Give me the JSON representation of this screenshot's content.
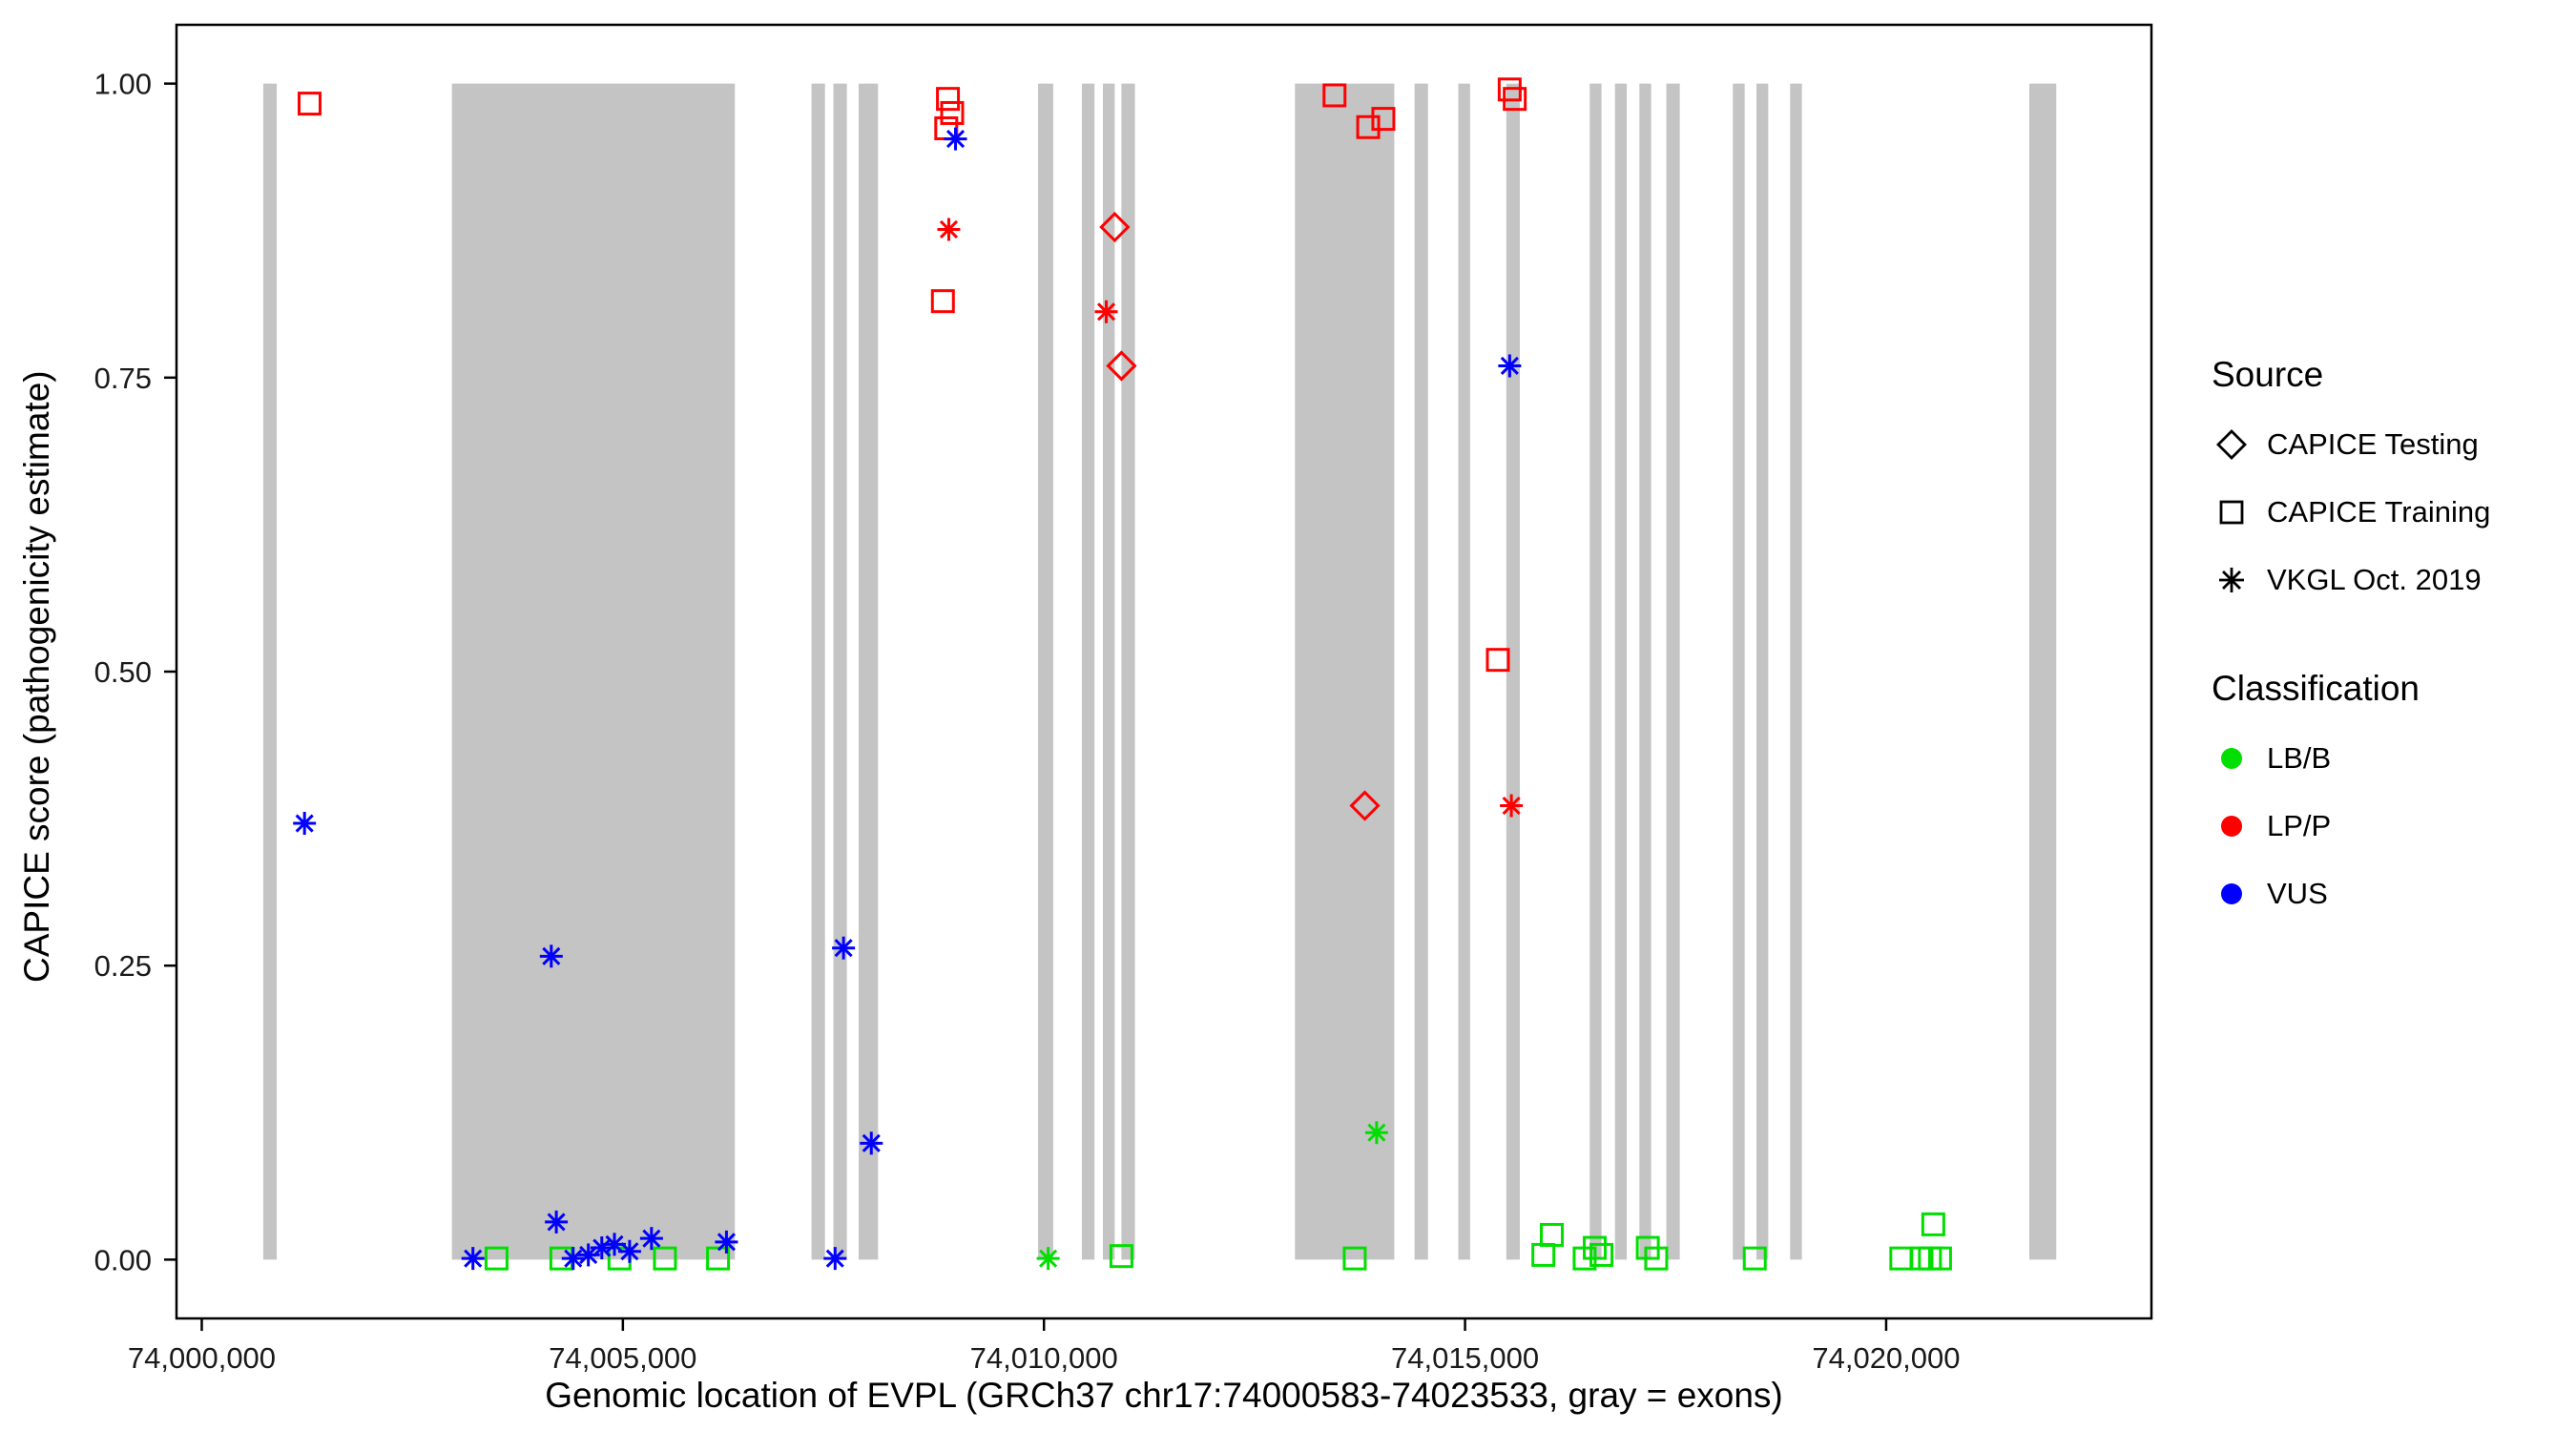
{
  "figure": {
    "background": "#FFFFFF"
  },
  "chart_data": {
    "type": "scatter",
    "title": "",
    "xlabel": "Genomic location of EVPL (GRCh37 chr17:74000583-74023533, gray = exons)",
    "ylabel": "CAPICE score (pathogenicity estimate)",
    "xlim": [
      73999700,
      74023150
    ],
    "ylim": [
      -0.05,
      1.05
    ],
    "grid": false,
    "legend_position": "right",
    "panel_border_color": "#000000",
    "tick_label_color": "#1a1a1a",
    "exon_color": "#C4C4C4",
    "x_ticks": [
      {
        "value": 74000000,
        "label": "74,000,000"
      },
      {
        "value": 74005000,
        "label": "74,005,000"
      },
      {
        "value": 74010000,
        "label": "74,010,000"
      },
      {
        "value": 74015000,
        "label": "74,015,000"
      },
      {
        "value": 74020000,
        "label": "74,020,000"
      }
    ],
    "y_ticks": [
      {
        "value": 0.0,
        "label": "0.00"
      },
      {
        "value": 0.25,
        "label": "0.25"
      },
      {
        "value": 0.5,
        "label": "0.50"
      },
      {
        "value": 0.75,
        "label": "0.75"
      },
      {
        "value": 1.0,
        "label": "1.00"
      }
    ],
    "exons": [
      [
        74000730,
        74000890
      ],
      [
        74002970,
        74006330
      ],
      [
        74007240,
        74007400
      ],
      [
        74007500,
        74007660
      ],
      [
        74007800,
        74008030
      ],
      [
        74009930,
        74010110
      ],
      [
        74010450,
        74010600
      ],
      [
        74010700,
        74010840
      ],
      [
        74010920,
        74011080
      ],
      [
        74012980,
        74014160
      ],
      [
        74014400,
        74014560
      ],
      [
        74014920,
        74015060
      ],
      [
        74015490,
        74015650
      ],
      [
        74016480,
        74016620
      ],
      [
        74016780,
        74016920
      ],
      [
        74017070,
        74017210
      ],
      [
        74017390,
        74017550
      ],
      [
        74018180,
        74018320
      ],
      [
        74018460,
        74018600
      ],
      [
        74018860,
        74019000
      ],
      [
        74021700,
        74022020
      ]
    ],
    "series": [
      {
        "name": "CAPICE Training",
        "classification": "LP/P",
        "shape": "square",
        "color": "#FF0000",
        "points": [
          [
            74001280,
            0.983
          ],
          [
            74008860,
            0.987
          ],
          [
            74008910,
            0.975
          ],
          [
            74008840,
            0.962
          ],
          [
            74008800,
            0.815
          ],
          [
            74013450,
            0.99
          ],
          [
            74013850,
            0.963
          ],
          [
            74014030,
            0.97
          ],
          [
            74015530,
            0.995
          ],
          [
            74015590,
            0.987
          ],
          [
            74015390,
            0.51
          ]
        ]
      },
      {
        "name": "CAPICE Training",
        "classification": "LB/B",
        "shape": "square",
        "color": "#00DF00",
        "points": [
          [
            74003500,
            0.001
          ],
          [
            74004270,
            0.001
          ],
          [
            74004960,
            0.001
          ],
          [
            74005500,
            0.001
          ],
          [
            74006130,
            0.001
          ],
          [
            74010920,
            0.003
          ],
          [
            74013690,
            0.001
          ],
          [
            74015930,
            0.004
          ],
          [
            74016030,
            0.021
          ],
          [
            74016420,
            0.001
          ],
          [
            74016540,
            0.01
          ],
          [
            74016620,
            0.004
          ],
          [
            74017170,
            0.01
          ],
          [
            74017270,
            0.001
          ],
          [
            74018440,
            0.001
          ],
          [
            74020180,
            0.001
          ],
          [
            74020420,
            0.001
          ],
          [
            74020520,
            0.001
          ],
          [
            74020640,
            0.001
          ],
          [
            74020560,
            0.03
          ]
        ]
      },
      {
        "name": "CAPICE Testing",
        "classification": "LP/P",
        "shape": "diamond",
        "color": "#FF0000",
        "points": [
          [
            74010840,
            0.878
          ],
          [
            74010920,
            0.76
          ],
          [
            74013810,
            0.386
          ]
        ]
      },
      {
        "name": "VKGL Oct. 2019",
        "classification": "LP/P",
        "shape": "asterisk",
        "color": "#FF0000",
        "points": [
          [
            74008870,
            0.876
          ],
          [
            74010740,
            0.806
          ],
          [
            74015550,
            0.386
          ]
        ]
      },
      {
        "name": "VKGL Oct. 2019",
        "classification": "VUS",
        "shape": "asterisk",
        "color": "#0000FF",
        "points": [
          [
            74001220,
            0.371
          ],
          [
            74004150,
            0.258
          ],
          [
            74007620,
            0.265
          ],
          [
            74007950,
            0.099
          ],
          [
            74008950,
            0.953
          ],
          [
            74015530,
            0.76
          ],
          [
            74003220,
            0.001
          ],
          [
            74004210,
            0.032
          ],
          [
            74004410,
            0.001
          ],
          [
            74004590,
            0.004
          ],
          [
            74004750,
            0.01
          ],
          [
            74004900,
            0.013
          ],
          [
            74005080,
            0.007
          ],
          [
            74005340,
            0.018
          ],
          [
            74006230,
            0.015
          ],
          [
            74007520,
            0.001
          ]
        ]
      },
      {
        "name": "VKGL Oct. 2019",
        "classification": "LB/B",
        "shape": "asterisk",
        "color": "#00DF00",
        "points": [
          [
            74010050,
            0.001
          ],
          [
            74013950,
            0.108
          ]
        ]
      }
    ]
  },
  "legend": {
    "source": {
      "title": "Source",
      "items": [
        {
          "label": "CAPICE Testing",
          "shape": "diamond"
        },
        {
          "label": "CAPICE Training",
          "shape": "square"
        },
        {
          "label": "VKGL Oct. 2019",
          "shape": "asterisk"
        }
      ]
    },
    "classification": {
      "title": "Classification",
      "items": [
        {
          "label": "LB/B",
          "color": "#00DF00"
        },
        {
          "label": "LP/P",
          "color": "#FF0000"
        },
        {
          "label": "VUS",
          "color": "#0000FF"
        }
      ]
    }
  }
}
